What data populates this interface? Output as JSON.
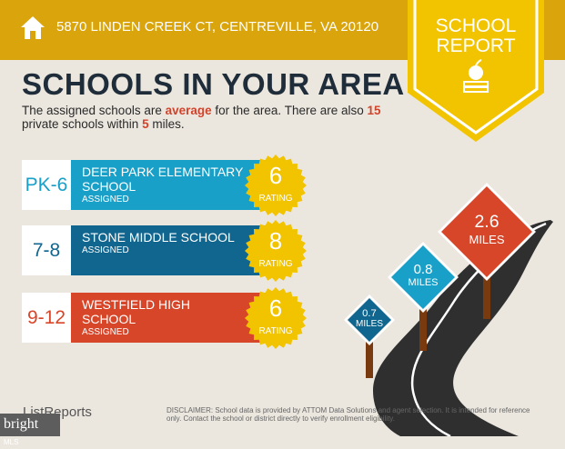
{
  "header": {
    "address": "5870 LINDEN CREEK CT, CENTREVILLE, VA 20120",
    "ribbon_line1": "SCHOOL",
    "ribbon_line2": "REPORT",
    "icon": "home-icon"
  },
  "title": "SCHOOLS IN YOUR AREA",
  "summary": {
    "t1": "The assigned schools are ",
    "quality": "average",
    "t2": " for the area. There are also ",
    "private_count": "15",
    "t3": " private schools within ",
    "miles": "5",
    "t4": " miles."
  },
  "schools": [
    {
      "grades": "PK-6",
      "name": "DEER PARK ELEMENTARY SCHOOL",
      "status": "ASSIGNED",
      "rating": "6",
      "rating_label": "RATING",
      "color": "#18a0c8"
    },
    {
      "grades": "7-8",
      "name": "STONE MIDDLE SCHOOL",
      "status": "ASSIGNED",
      "rating": "8",
      "rating_label": "RATING",
      "color": "#11668f"
    },
    {
      "grades": "9-12",
      "name": "WESTFIELD HIGH SCHOOL",
      "status": "ASSIGNED",
      "rating": "6",
      "rating_label": "RATING",
      "color": "#d8462a"
    }
  ],
  "signs": [
    {
      "value": "2.6",
      "unit": "MILES",
      "color": "#d8462a"
    },
    {
      "value": "0.8",
      "unit": "MILES",
      "color": "#18a0c8"
    },
    {
      "value": "0.7",
      "unit": "MILES",
      "color": "#11668f"
    }
  ],
  "footer": {
    "brand": "ListReports",
    "disclaimer_label": "DISCLAIMER:",
    "disclaimer": " School data is provided by ATTOM Data Solutions and agent selection. It is intended for reference only. Contact the school or district directly to verify enrollment eligibility.",
    "mls_brand": "bright",
    "mls_suffix": "MLS"
  }
}
